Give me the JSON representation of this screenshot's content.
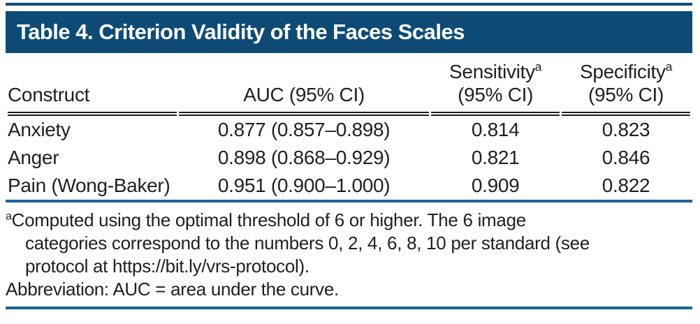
{
  "title_bar": {
    "text": "Table 4. Criterion Validity of the Faces Scales"
  },
  "table": {
    "headers": [
      {
        "label": "Construct"
      },
      {
        "label": "AUC (95% CI)"
      },
      {
        "label": "Sensitivity",
        "marker": "a",
        "second_line": "(95% CI)"
      },
      {
        "label": "Specificity",
        "marker": "a",
        "second_line": "(95% CI)"
      }
    ],
    "rows": [
      {
        "cells": [
          "Anxiety",
          "0.877 (0.857–0.898)",
          "0.814",
          "0.823"
        ]
      },
      {
        "cells": [
          "Anger",
          "0.898 (0.868–0.929)",
          "0.821",
          "0.846"
        ]
      },
      {
        "cells": [
          "Pain (Wong-Baker)",
          "0.951 (0.900–1.000)",
          "0.909",
          "0.822"
        ]
      }
    ]
  },
  "footnotes": {
    "marker": "a",
    "note_lines": [
      "Computed using the optimal threshold of 6 or higher. The 6 image",
      "categories correspond to the numbers 0, 2, 4, 6, 8, 10 per standard (see",
      "protocol at https://bit.ly/vrs-protocol)."
    ],
    "abbreviation_line": "Abbreviation: AUC = area under the curve."
  },
  "colors": {
    "header_bar": "#0d4b76",
    "rule_blue": "#1a6396",
    "text": "#1f1f1f",
    "header_rule": "#1b1b1b"
  }
}
